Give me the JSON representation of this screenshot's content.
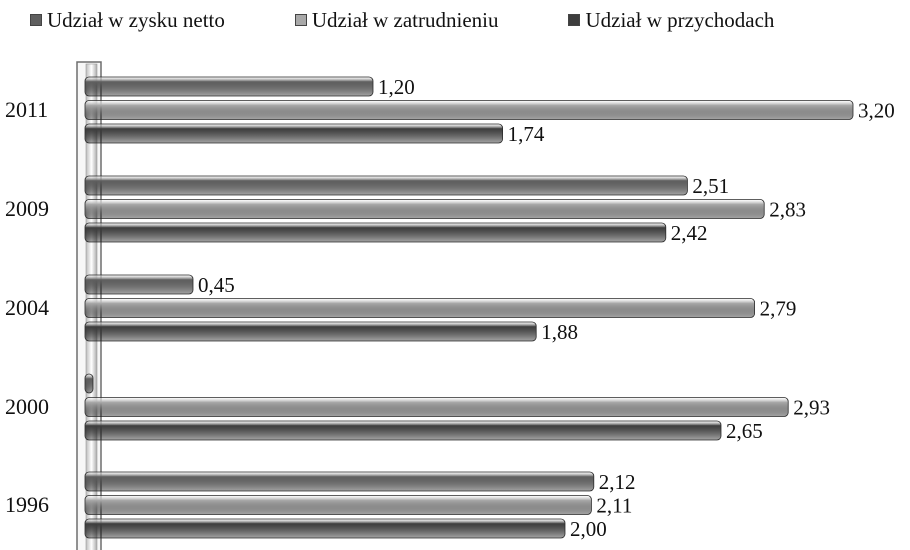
{
  "chart_data": {
    "type": "bar",
    "orientation": "horizontal",
    "categories": [
      "2011",
      "2009",
      "2004",
      "2000",
      "1996"
    ],
    "series": [
      {
        "name": "Udział w zysku netto",
        "values": [
          1.2,
          2.51,
          0.45,
          null,
          2.12
        ],
        "labels": [
          "1,20",
          "2,51",
          "0,45",
          "",
          "2,12"
        ],
        "color": "#5f5f5f"
      },
      {
        "name": "Udział w zatrudnieniu",
        "values": [
          3.2,
          2.83,
          2.79,
          2.93,
          2.11
        ],
        "labels": [
          "3,20",
          "2,83",
          "2,79",
          "2,93",
          "2,11"
        ],
        "color": "#a9a9a9"
      },
      {
        "name": "Udział w przychodach",
        "values": [
          1.74,
          2.42,
          1.88,
          2.65,
          2.0
        ],
        "labels": [
          "1,74",
          "2,42",
          "1,88",
          "2,65",
          "2,00"
        ],
        "color": "#3d3d3d"
      }
    ],
    "xlim": [
      0,
      3.25
    ],
    "grid": false,
    "legend_position": "top"
  }
}
